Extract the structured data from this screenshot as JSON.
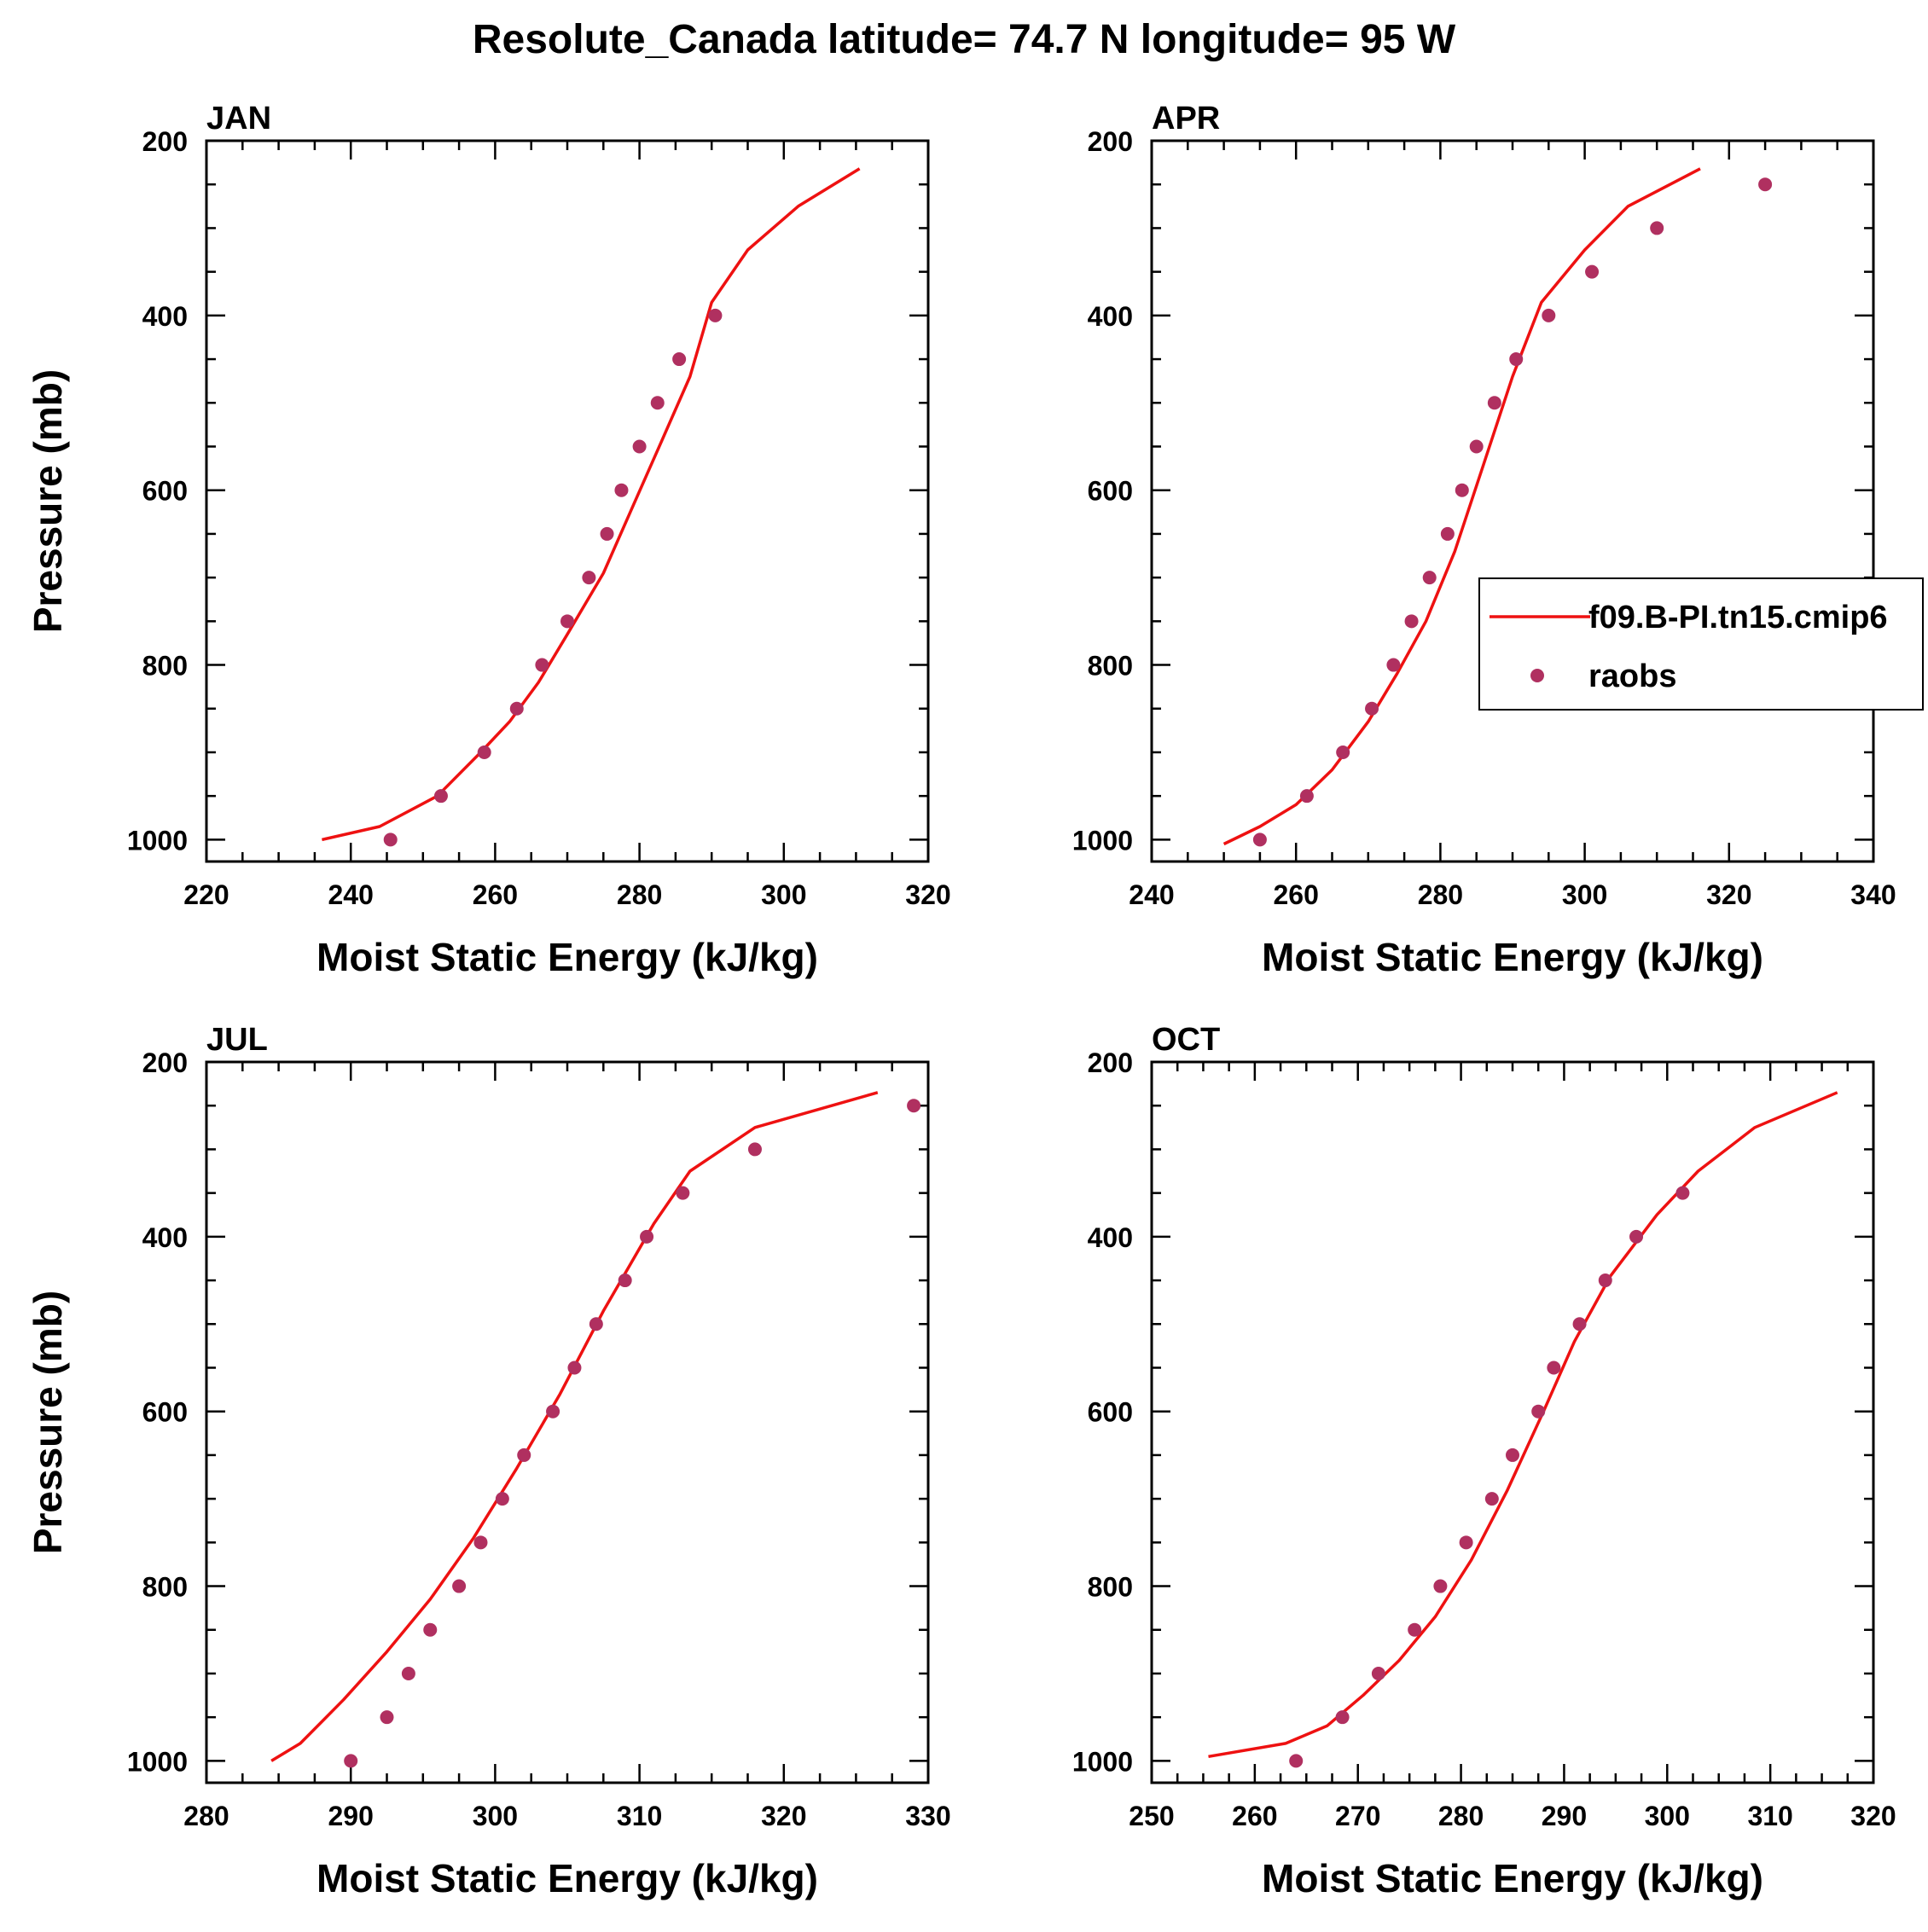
{
  "figure_title": "Resolute_Canada  latitude= 74.7 N longitude= 95 W",
  "legend": {
    "model_label": "f09.B-PI.tn15.cmip6",
    "obs_label": "raobs",
    "position": "right edge of APR panel"
  },
  "colors": {
    "model_line": "#ee1111",
    "obs_marker": "#b03060",
    "axes": "#000000"
  },
  "chart_data": [
    {
      "type": "line",
      "title": "JAN",
      "xlabel": "Moist Static Energy (kJ/kg)",
      "ylabel": "Pressure (mb)",
      "xlim": [
        220,
        320
      ],
      "ylim": [
        1025,
        200
      ],
      "xticks": [
        220,
        240,
        260,
        280,
        300,
        320
      ],
      "yticks": [
        200,
        400,
        600,
        800,
        1000
      ],
      "series": [
        {
          "name": "f09.B-PI.tn15.cmip6",
          "kind": "line",
          "x": [
            236,
            244,
            252,
            258,
            262,
            266,
            270,
            275,
            279,
            283,
            287,
            290,
            295,
            302,
            310.5
          ],
          "y": [
            1000,
            985,
            950,
            900,
            865,
            820,
            765,
            695,
            620,
            545,
            470,
            385,
            325,
            275,
            232
          ]
        },
        {
          "name": "raobs",
          "kind": "scatter",
          "x": [
            245.5,
            252.5,
            258.5,
            263,
            266.5,
            270,
            273,
            275.5,
            277.5,
            280,
            282.5,
            285.5,
            290.5
          ],
          "y": [
            1000,
            950,
            900,
            850,
            800,
            750,
            700,
            650,
            600,
            550,
            500,
            450,
            400
          ]
        }
      ]
    },
    {
      "type": "line",
      "title": "APR",
      "xlabel": "Moist Static Energy (kJ/kg)",
      "ylabel": "",
      "xlim": [
        240,
        340
      ],
      "ylim": [
        1025,
        200
      ],
      "xticks": [
        240,
        260,
        280,
        300,
        320,
        340
      ],
      "yticks": [
        200,
        400,
        600,
        800,
        1000
      ],
      "series": [
        {
          "name": "f09.B-PI.tn15.cmip6",
          "kind": "line",
          "x": [
            250,
            255,
            260,
            265,
            270,
            274,
            278,
            282,
            286,
            290,
            294,
            300,
            306,
            316
          ],
          "y": [
            1005,
            985,
            960,
            920,
            865,
            810,
            750,
            670,
            570,
            470,
            385,
            325,
            275,
            232
          ]
        },
        {
          "name": "raobs",
          "kind": "scatter",
          "x": [
            255,
            261.5,
            266.5,
            270.5,
            273.5,
            276,
            278.5,
            281,
            283,
            285,
            287.5,
            290.5,
            295,
            301,
            310,
            325
          ],
          "y": [
            1000,
            950,
            900,
            850,
            800,
            750,
            700,
            650,
            600,
            550,
            500,
            450,
            400,
            350,
            300,
            250
          ]
        }
      ]
    },
    {
      "type": "line",
      "title": "JUL",
      "xlabel": "Moist Static Energy (kJ/kg)",
      "ylabel": "Pressure (mb)",
      "xlim": [
        280,
        330
      ],
      "ylim": [
        1025,
        200
      ],
      "xticks": [
        280,
        290,
        300,
        310,
        320,
        330
      ],
      "yticks": [
        200,
        400,
        600,
        800,
        1000
      ],
      "series": [
        {
          "name": "f09.B-PI.tn15.cmip6",
          "kind": "line",
          "x": [
            284.5,
            286.5,
            289.5,
            292.5,
            295.5,
            298.5,
            301.5,
            304.5,
            307.5,
            311,
            313.5,
            318,
            326.5
          ],
          "y": [
            1000,
            980,
            930,
            875,
            815,
            745,
            665,
            580,
            485,
            385,
            325,
            275,
            235
          ]
        },
        {
          "name": "raobs",
          "kind": "scatter",
          "x": [
            290,
            292.5,
            294,
            295.5,
            297.5,
            299,
            300.5,
            302,
            304,
            305.5,
            307,
            309,
            310.5,
            313,
            318,
            329
          ],
          "y": [
            1000,
            950,
            900,
            850,
            800,
            750,
            700,
            650,
            600,
            550,
            500,
            450,
            400,
            350,
            300,
            250
          ]
        }
      ]
    },
    {
      "type": "line",
      "title": "OCT",
      "xlabel": "Moist Static Energy (kJ/kg)",
      "ylabel": "",
      "xlim": [
        250,
        320
      ],
      "ylim": [
        1025,
        200
      ],
      "xticks": [
        250,
        260,
        270,
        280,
        290,
        300,
        310,
        320
      ],
      "yticks": [
        200,
        400,
        600,
        800,
        1000
      ],
      "series": [
        {
          "name": "f09.B-PI.tn15.cmip6",
          "kind": "line",
          "x": [
            255.5,
            263,
            267,
            270.5,
            274,
            277.5,
            281,
            284.5,
            288,
            291,
            294.5,
            299,
            303,
            308.5,
            316.5
          ],
          "y": [
            995,
            980,
            960,
            925,
            885,
            835,
            770,
            690,
            600,
            520,
            445,
            375,
            325,
            275,
            235
          ]
        },
        {
          "name": "raobs",
          "kind": "scatter",
          "x": [
            264,
            268.5,
            272,
            275.5,
            278,
            280.5,
            283,
            285,
            287.5,
            289,
            291.5,
            294,
            297,
            301.5
          ],
          "y": [
            1000,
            950,
            900,
            850,
            800,
            750,
            700,
            650,
            600,
            550,
            500,
            450,
            400,
            350
          ]
        }
      ]
    }
  ]
}
